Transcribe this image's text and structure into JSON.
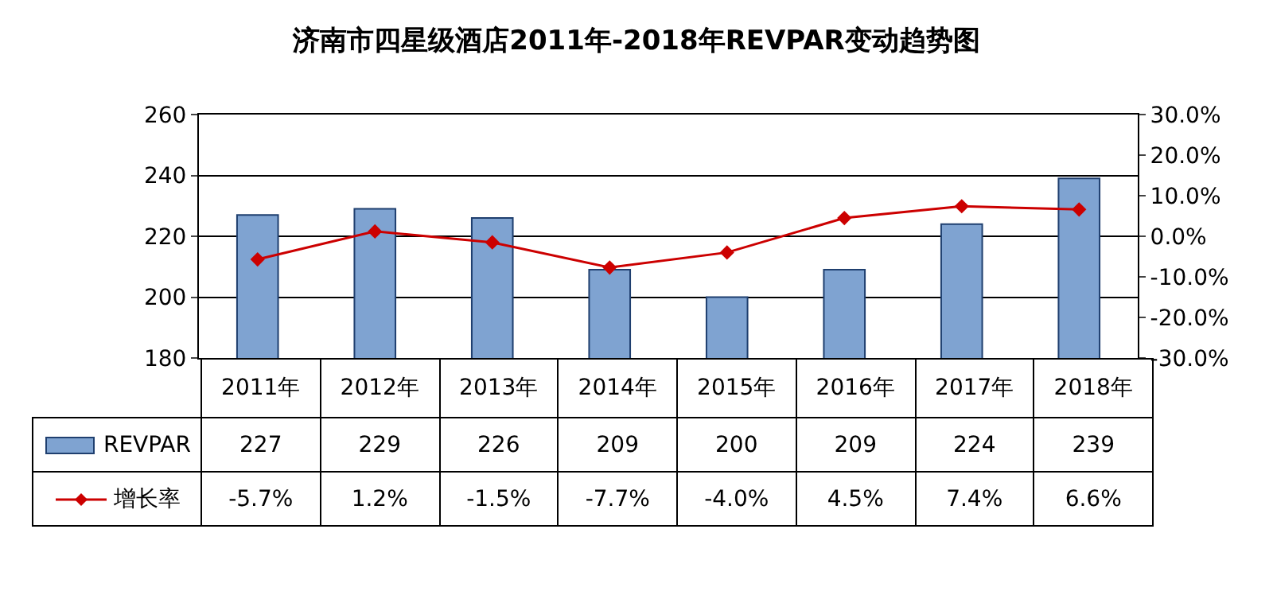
{
  "chart_data": {
    "type": "bar",
    "title": "济南市四星级酒店2011年-2018年REVPAR变动趋势图",
    "categories": [
      "2011年",
      "2012年",
      "2013年",
      "2014年",
      "2015年",
      "2016年",
      "2017年",
      "2018年"
    ],
    "series": [
      {
        "name": "REVPAR",
        "color": "#7fa3d1",
        "values": [
          227,
          229,
          226,
          209,
          200,
          209,
          224,
          239
        ],
        "value_labels": [
          "227",
          "229",
          "226",
          "209",
          "200",
          "209",
          "224",
          "239"
        ]
      },
      {
        "name": "增长率",
        "type": "line",
        "axis": "y2",
        "color": "#cc0000",
        "marker": "diamond",
        "values": [
          -5.7,
          1.2,
          -1.5,
          -7.7,
          -4.0,
          4.5,
          7.4,
          6.6
        ],
        "value_labels": [
          "-5.7%",
          "1.2%",
          "-1.5%",
          "-7.7%",
          "-4.0%",
          "4.5%",
          "7.4%",
          "6.6%"
        ]
      }
    ],
    "ylim": [
      180,
      260
    ],
    "yticks": [
      180,
      200,
      220,
      240,
      260
    ],
    "y2lim": [
      -30,
      30
    ],
    "y2ticks": [
      {
        "value": -30,
        "label": "-30.0%"
      },
      {
        "value": -20,
        "label": "-20.0%"
      },
      {
        "value": -10,
        "label": "-10.0%"
      },
      {
        "value": 0,
        "label": "0.0%"
      },
      {
        "value": 10,
        "label": "10.0%"
      },
      {
        "value": 20,
        "label": "20.0%"
      },
      {
        "value": 30,
        "label": "30.0%"
      }
    ],
    "grid": "y",
    "legend": "bottom left"
  }
}
